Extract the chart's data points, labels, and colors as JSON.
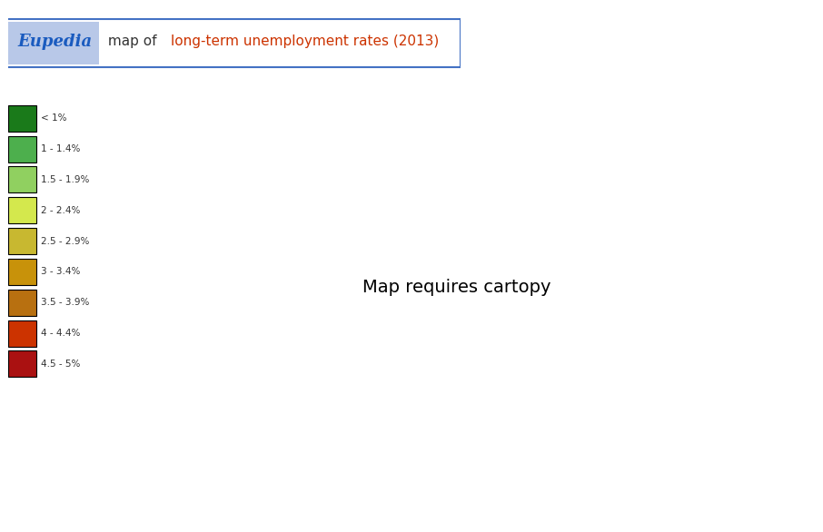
{
  "title_eupedia": "Eupedia",
  "title_rest": " map of ",
  "title_colored": "long-term unemployment rates (2013)",
  "background_color": "#ffffff",
  "border_color": "#4472c4",
  "legend_categories": [
    {
      "label": "< 1%",
      "color": "#1a7a1a"
    },
    {
      "label": "1 - 1.4%",
      "color": "#4daf4d"
    },
    {
      "label": "1.5 - 1.9%",
      "color": "#90d060"
    },
    {
      "label": "2 - 2.4%",
      "color": "#d4e84d"
    },
    {
      "label": "2.5 - 2.9%",
      "color": "#c8b830"
    },
    {
      "label": "3 - 3.4%",
      "color": "#c8920a"
    },
    {
      "label": "3.5 - 3.9%",
      "color": "#b87010"
    },
    {
      "label": "4 - 4.4%",
      "color": "#cc3300"
    },
    {
      "label": "4.5 - 5%",
      "color": "#aa1111"
    }
  ],
  "state_colors": {
    "WA": "#90d060",
    "OR": "#c8920a",
    "CA": "#cc3300",
    "NV": "#aa1111",
    "ID": "#90d060",
    "MT": "#90d060",
    "WY": "#4daf4d",
    "UT": "#90d060",
    "CO": "#c8b830",
    "AZ": "#c8920a",
    "NM": "#c8920a",
    "AK": "#90d060",
    "HI": "#d4e84d",
    "ND": "#1a7a1a",
    "SD": "#1a7a1a",
    "NE": "#4daf4d",
    "KS": "#4daf4d",
    "OK": "#4daf4d",
    "TX": "#d4e84d",
    "MN": "#c8b830",
    "IA": "#c8b830",
    "MO": "#c8b830",
    "AR": "#d4e84d",
    "LA": "#c8b830",
    "WI": "#c8b830",
    "IL": "#cc3300",
    "IN": "#c8b830",
    "MI": "#c8920a",
    "OH": "#c8b830",
    "KY": "#c8b830",
    "TN": "#c8b830",
    "MS": "#c8920a",
    "AL": "#c8920a",
    "GA": "#c8920a",
    "FL": "#cc3300",
    "SC": "#c8920a",
    "NC": "#cc3300",
    "VA": "#d4e84d",
    "WV": "#c8b830",
    "PA": "#c8920a",
    "NY": "#c8920a",
    "VT": "#4daf4d",
    "NH": "#c8920a",
    "ME": "#c8920a",
    "MA": "#cc3300",
    "RI": "#cc3300",
    "CT": "#cc3300",
    "NJ": "#cc3300",
    "DE": "#cc3300",
    "MD": "#c8b830"
  }
}
